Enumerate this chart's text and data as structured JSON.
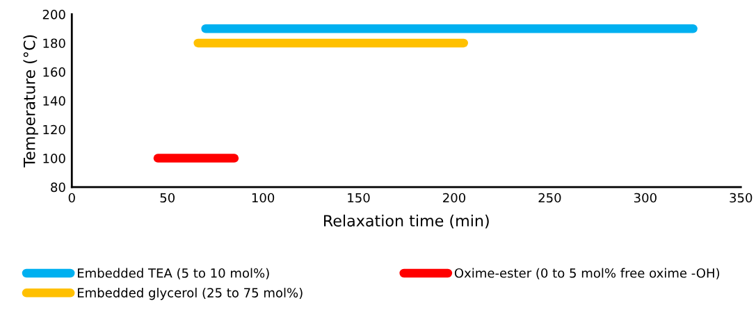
{
  "chart_data": {
    "type": "line",
    "xlabel": "Relaxation time (min)",
    "ylabel": "Temperature (°C)",
    "xlim": [
      0,
      350
    ],
    "xticks": [
      0,
      50,
      100,
      150,
      200,
      250,
      300,
      350
    ],
    "ylim": [
      80,
      200
    ],
    "yticks": [
      80,
      100,
      120,
      140,
      160,
      180,
      200
    ],
    "grid": false,
    "legend": "bottom",
    "line_style": "solid",
    "series": [
      {
        "name": "Embedded TEA (5 to 10 mol%)",
        "color": "#00b0f0",
        "x": [
          70,
          325
        ],
        "values": [
          190,
          190
        ]
      },
      {
        "name": "Embedded glycerol (25 to 75 mol%)",
        "color": "#ffc000",
        "x": [
          66,
          205
        ],
        "values": [
          180,
          180
        ]
      },
      {
        "name": "Oxime-ester (0 to 5 mol% free oxime -OH)",
        "color": "#ff0000",
        "x": [
          45,
          85
        ],
        "values": [
          100,
          100
        ]
      }
    ]
  }
}
